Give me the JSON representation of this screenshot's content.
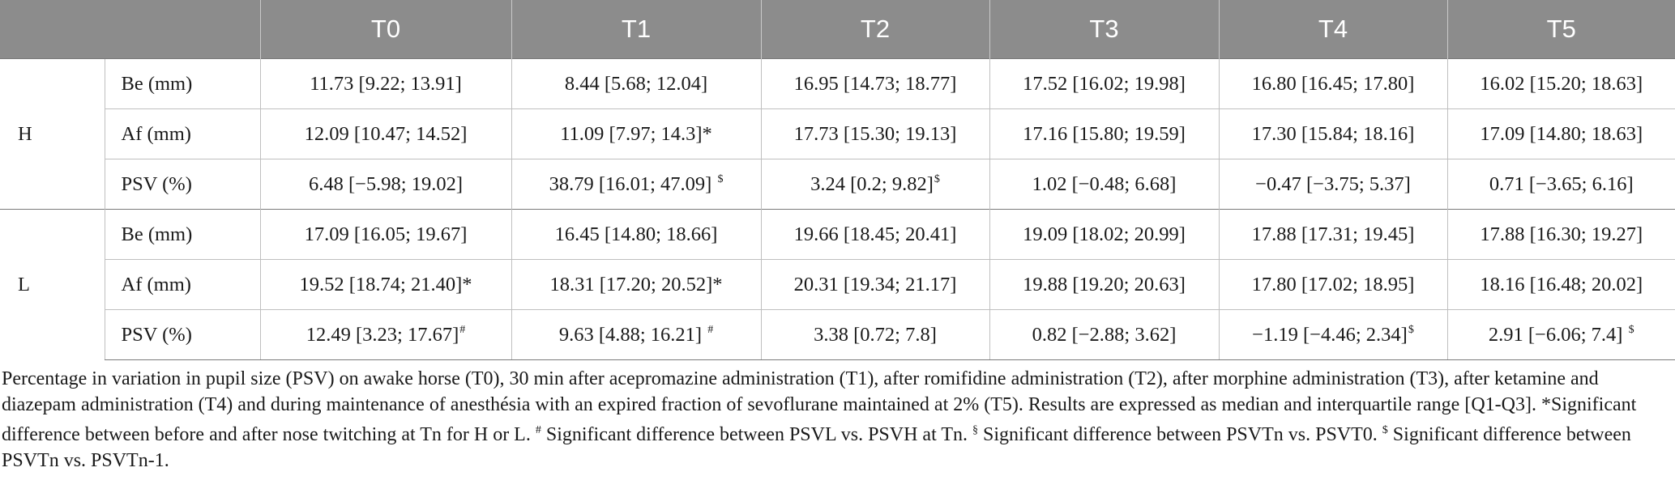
{
  "table": {
    "headers": [
      "",
      "",
      "T0",
      "T1",
      "T2",
      "T3",
      "T4",
      "T5"
    ],
    "groups": [
      {
        "label": "H",
        "rows": [
          {
            "param": "Be (mm)",
            "cells": [
              {
                "v": "11.73 [9.22; 13.91]",
                "m": ""
              },
              {
                "v": "8.44 [5.68; 12.04]",
                "m": ""
              },
              {
                "v": "16.95 [14.73; 18.77]",
                "m": ""
              },
              {
                "v": "17.52 [16.02; 19.98]",
                "m": ""
              },
              {
                "v": "16.80 [16.45; 17.80]",
                "m": ""
              },
              {
                "v": "16.02 [15.20; 18.63]",
                "m": ""
              }
            ]
          },
          {
            "param": "Af (mm)",
            "cells": [
              {
                "v": "12.09 [10.47; 14.52]",
                "m": ""
              },
              {
                "v": "11.09 [7.97; 14.3]*",
                "m": ""
              },
              {
                "v": "17.73 [15.30; 19.13]",
                "m": ""
              },
              {
                "v": "17.16 [15.80; 19.59]",
                "m": ""
              },
              {
                "v": "17.30 [15.84; 18.16]",
                "m": ""
              },
              {
                "v": "17.09 [14.80; 18.63]",
                "m": ""
              }
            ]
          },
          {
            "param": "PSV (%)",
            "cells": [
              {
                "v": "6.48 [−5.98; 19.02]",
                "m": ""
              },
              {
                "v": "38.79 [16.01; 47.09] ",
                "m": "$"
              },
              {
                "v": "3.24 [0.2; 9.82]",
                "m": "$"
              },
              {
                "v": "1.02 [−0.48; 6.68]",
                "m": ""
              },
              {
                "v": "−0.47 [−3.75; 5.37]",
                "m": ""
              },
              {
                "v": "0.71 [−3.65; 6.16]",
                "m": ""
              }
            ]
          }
        ]
      },
      {
        "label": "L",
        "rows": [
          {
            "param": "Be (mm)",
            "cells": [
              {
                "v": "17.09 [16.05; 19.67]",
                "m": ""
              },
              {
                "v": "16.45 [14.80; 18.66]",
                "m": ""
              },
              {
                "v": "19.66 [18.45; 20.41]",
                "m": ""
              },
              {
                "v": "19.09 [18.02; 20.99]",
                "m": ""
              },
              {
                "v": "17.88 [17.31; 19.45]",
                "m": ""
              },
              {
                "v": "17.88 [16.30; 19.27]",
                "m": ""
              }
            ]
          },
          {
            "param": "Af (mm)",
            "cells": [
              {
                "v": "19.52 [18.74; 21.40]*",
                "m": ""
              },
              {
                "v": "18.31 [17.20; 20.52]*",
                "m": ""
              },
              {
                "v": "20.31 [19.34; 21.17]",
                "m": ""
              },
              {
                "v": "19.88 [19.20; 20.63]",
                "m": ""
              },
              {
                "v": "17.80 [17.02; 18.95]",
                "m": ""
              },
              {
                "v": "18.16 [16.48; 20.02]",
                "m": ""
              }
            ]
          },
          {
            "param": "PSV (%)",
            "cells": [
              {
                "v": "12.49 [3.23; 17.67]",
                "m": "#"
              },
              {
                "v": "9.63 [4.88; 16.21] ",
                "m": "#"
              },
              {
                "v": "3.38 [0.72; 7.8]",
                "m": ""
              },
              {
                "v": "0.82 [−2.88; 3.62]",
                "m": ""
              },
              {
                "v": "−1.19 [−4.46; 2.34]",
                "m": "$"
              },
              {
                "v": "2.91 [−6.06; 7.4] ",
                "m": "$"
              }
            ]
          }
        ]
      }
    ]
  },
  "footnote": [
    {
      "t": "Percentage in variation in pupil size (PSV) on awake horse (T0), 30 min after acepromazine administration (T1), after romifidine administration (T2), after morphine administration (T3), after ketamine and diazepam administration (T4) and during maintenance of anesthésia with an expired fraction of sevoflurane maintained at 2% (T5). Results are expressed as median and interquartile range [Q1-Q3]. *Significant difference between before and after nose twitching at Tn for H or L. ",
      "sup": false
    },
    {
      "t": "#",
      "sup": true
    },
    {
      "t": " Significant difference between PSVL vs. PSVH at Tn. ",
      "sup": false
    },
    {
      "t": "§",
      "sup": true
    },
    {
      "t": " Significant difference between PSVTn vs. PSVT0. ",
      "sup": false
    },
    {
      "t": "$",
      "sup": true
    },
    {
      "t": " Significant difference between PSVTn vs. PSVTn-1.",
      "sup": false
    }
  ]
}
